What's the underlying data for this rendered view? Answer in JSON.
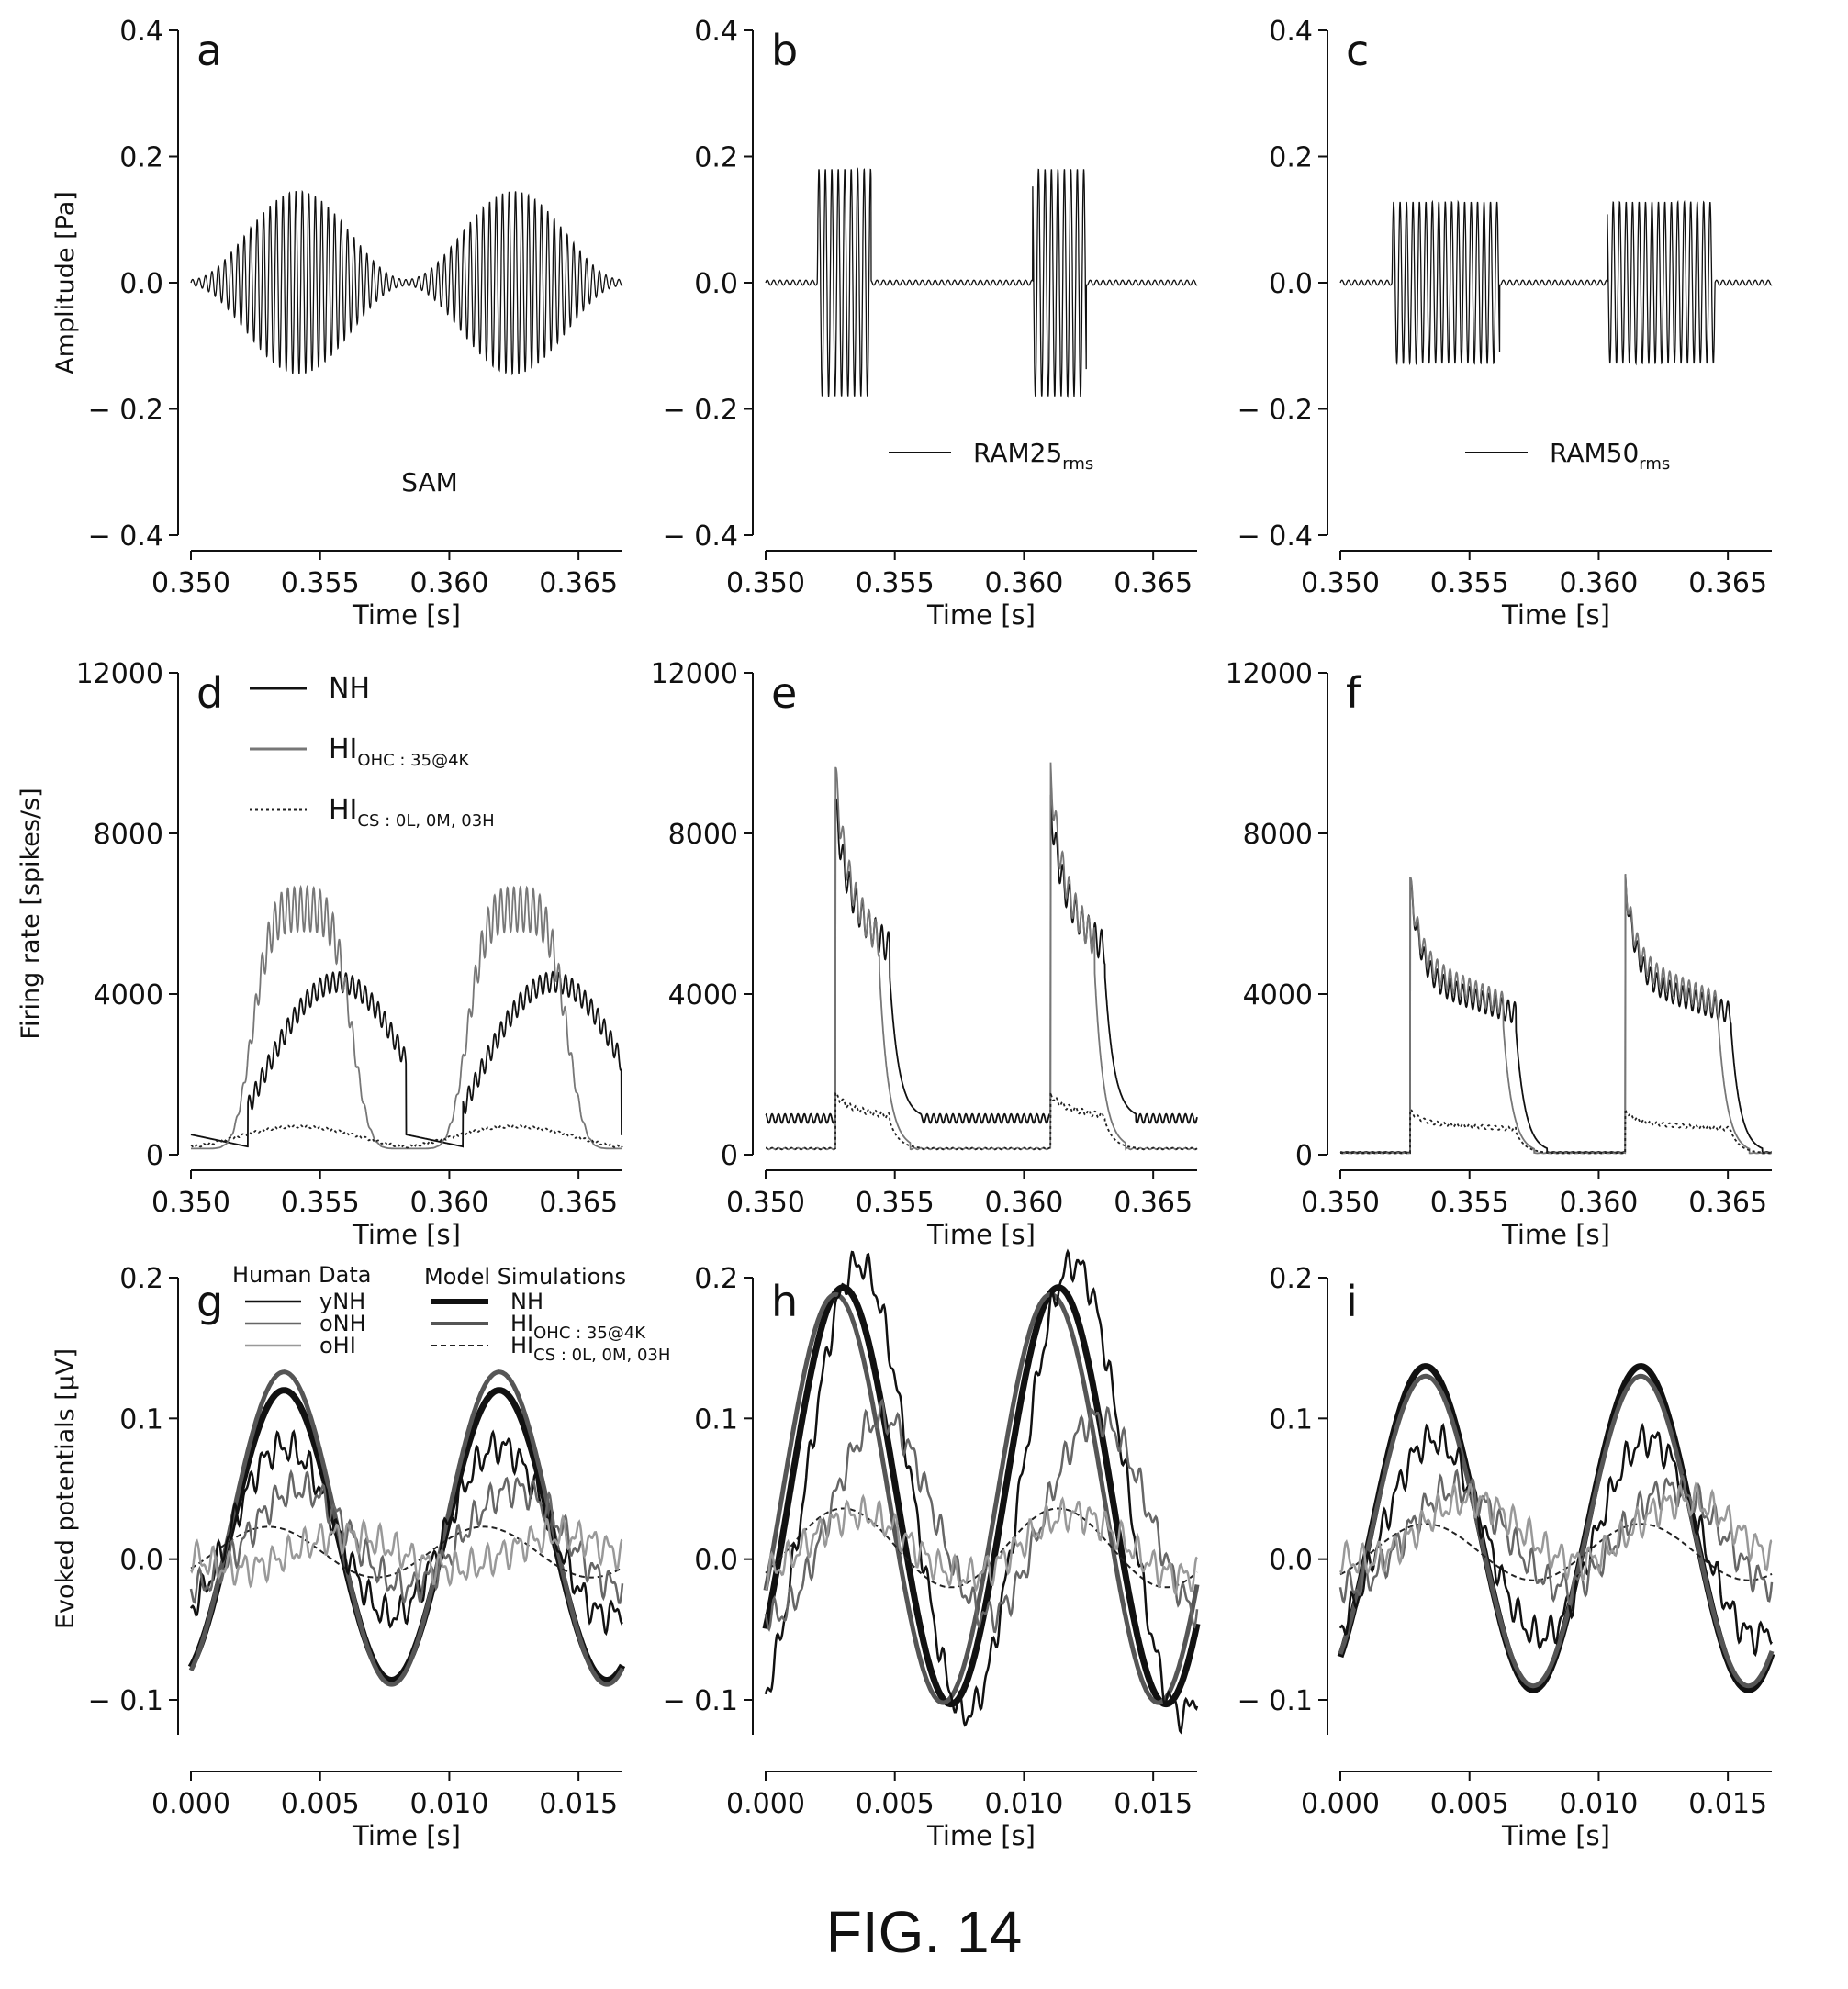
{
  "figure_caption": "FIG. 14",
  "chart_data": [
    {
      "id": "a",
      "panel_label": "a",
      "type": "line",
      "xlabel": "Time [s]",
      "ylabel": "Amplitude [Pa]",
      "xlim": [
        0.35,
        0.3667
      ],
      "ylim": [
        -0.4,
        0.4
      ],
      "xticks": [
        "0.350",
        "0.355",
        "0.360",
        "0.365"
      ],
      "yticks": [
        "0.4",
        "0.2",
        "0.0",
        "− 0.2",
        "− 0.4"
      ],
      "annotation": "SAM",
      "series": [
        {
          "name": "SAM",
          "kind": "sam",
          "carrier_hz": 4000,
          "mod_hz": 120,
          "peak": 0.145,
          "floor": 0.005
        }
      ]
    },
    {
      "id": "b",
      "panel_label": "b",
      "type": "line",
      "xlabel": "Time [s]",
      "ylabel": "",
      "xlim": [
        0.35,
        0.3667
      ],
      "ylim": [
        -0.4,
        0.4
      ],
      "xticks": [
        "0.350",
        "0.355",
        "0.360",
        "0.365"
      ],
      "yticks": [
        "0.4",
        "0.2",
        "0.0",
        "− 0.2",
        "− 0.4"
      ],
      "legend": [
        "RAM25",
        "rms"
      ],
      "series": [
        {
          "name": "RAM25rms",
          "kind": "ram",
          "carrier_hz": 4000,
          "period": 0.00833,
          "on_start": 0.352,
          "on_dur": 0.00208,
          "peak": 0.18,
          "floor": 0.004
        }
      ]
    },
    {
      "id": "c",
      "panel_label": "c",
      "type": "line",
      "xlabel": "Time [s]",
      "ylabel": "",
      "xlim": [
        0.35,
        0.3667
      ],
      "ylim": [
        -0.4,
        0.4
      ],
      "xticks": [
        "0.350",
        "0.355",
        "0.360",
        "0.365"
      ],
      "yticks": [
        "0.4",
        "0.2",
        "0.0",
        "− 0.2",
        "− 0.4"
      ],
      "legend": [
        "RAM50",
        "rms"
      ],
      "series": [
        {
          "name": "RAM50rms",
          "kind": "ram",
          "carrier_hz": 4000,
          "period": 0.00833,
          "on_start": 0.352,
          "on_dur": 0.00417,
          "peak": 0.128,
          "floor": 0.004
        }
      ]
    },
    {
      "id": "d",
      "panel_label": "d",
      "type": "line",
      "xlabel": "Time [s]",
      "ylabel": "Firing rate [spikes/s]",
      "xlim": [
        0.35,
        0.3667
      ],
      "ylim": [
        0,
        12000
      ],
      "xticks": [
        "0.350",
        "0.355",
        "0.360",
        "0.365"
      ],
      "yticks": [
        "12000",
        "8000",
        "4000",
        "0"
      ],
      "legend": [
        {
          "base": "NH",
          "sub": "",
          "style": "solid"
        },
        {
          "base": "HI",
          "sub": "OHC : 35@4K",
          "style": "gray"
        },
        {
          "base": "HI",
          "sub": "CS : 0L, 0M, 03H",
          "style": "dotted"
        }
      ],
      "series": [
        {
          "name": "NH",
          "kind": "fr_sam",
          "peak": 4300,
          "floor": 300,
          "ripple": 500
        },
        {
          "name": "HI OHC",
          "kind": "fr_sam_ohc",
          "peak": 6000,
          "floor": 150,
          "ripple": 1100
        },
        {
          "name": "HI CS",
          "kind": "fr_sam_cs",
          "peak": 700,
          "floor": 200,
          "ripple": 60
        }
      ]
    },
    {
      "id": "e",
      "panel_label": "e",
      "type": "line",
      "xlabel": "Time [s]",
      "ylabel": "",
      "xlim": [
        0.35,
        0.3667
      ],
      "ylim": [
        0,
        12000
      ],
      "xticks": [
        "0.350",
        "0.355",
        "0.360",
        "0.365"
      ],
      "yticks": [
        "12000",
        "8000",
        "4000",
        "0"
      ],
      "series": [
        {
          "name": "NH",
          "kind": "fr_ram",
          "onset": 0.3527,
          "dur": 0.0021,
          "peak": 8700,
          "sustain": 6400,
          "floor": 900
        },
        {
          "name": "HI OHC",
          "kind": "fr_ram",
          "onset": 0.3527,
          "dur": 0.0017,
          "peak": 9500,
          "sustain": 6600,
          "floor": 150
        },
        {
          "name": "HI CS",
          "kind": "fr_ram",
          "onset": 0.3527,
          "dur": 0.0021,
          "peak": 1500,
          "sustain": 1200,
          "floor": 150
        }
      ]
    },
    {
      "id": "f",
      "panel_label": "f",
      "type": "line",
      "xlabel": "Time [s]",
      "ylabel": "",
      "xlim": [
        0.35,
        0.3667
      ],
      "ylim": [
        0,
        12000
      ],
      "xticks": [
        "0.350",
        "0.355",
        "0.360",
        "0.365"
      ],
      "yticks": [
        "12000",
        "8000",
        "4000",
        "0"
      ],
      "series": [
        {
          "name": "NH",
          "kind": "fr_ram",
          "onset": 0.3527,
          "dur": 0.0041,
          "peak": 6800,
          "sustain": 4400,
          "floor": 60
        },
        {
          "name": "HI OHC",
          "kind": "fr_ram",
          "onset": 0.3527,
          "dur": 0.0036,
          "peak": 6800,
          "sustain": 4700,
          "floor": 40
        },
        {
          "name": "HI CS",
          "kind": "fr_ram",
          "onset": 0.3527,
          "dur": 0.0041,
          "peak": 1100,
          "sustain": 800,
          "floor": 40
        }
      ]
    },
    {
      "id": "g",
      "panel_label": "g",
      "type": "line",
      "xlabel": "Time [s]",
      "ylabel": "Evoked potentials [μV]",
      "xlim": [
        0,
        0.0167
      ],
      "ylim": [
        -0.1,
        0.2
      ],
      "xticks": [
        "0.000",
        "0.005",
        "0.010",
        "0.015"
      ],
      "yticks": [
        "0.2",
        "0.1",
        "0.0",
        "− 0.1"
      ],
      "legend_human_title": "Human Data",
      "legend_model_title": "Model Simulations",
      "legend_human": [
        "yNH",
        "oNH",
        "oHI"
      ],
      "legend_model": [
        {
          "base": "NH",
          "sub": ""
        },
        {
          "base": "HI",
          "sub": "OHC : 35@4K"
        },
        {
          "base": "HI",
          "sub": "CS : 0L, 0M, 03H"
        }
      ],
      "series": [
        {
          "name": "Model NH",
          "amp": 0.103,
          "off": 0.017,
          "peak_t": 0.0036,
          "w": 7
        },
        {
          "name": "Model HI OHC",
          "amp": 0.111,
          "off": 0.022,
          "peak_t": 0.0036,
          "w": 5
        },
        {
          "name": "Model HI CS",
          "amp": 0.018,
          "off": 0.005,
          "peak_t": 0.003,
          "w": 2
        },
        {
          "name": "yNH",
          "amp": 0.06,
          "off": 0.02,
          "peak_t": 0.0036,
          "w": 2.5
        },
        {
          "name": "oNH",
          "amp": 0.035,
          "off": 0.015,
          "peak_t": 0.0042,
          "w": 2.5
        },
        {
          "name": "oHI",
          "amp": 0.012,
          "off": 0.005,
          "peak_t": 0.006,
          "w": 2.5
        }
      ]
    },
    {
      "id": "h",
      "panel_label": "h",
      "type": "line",
      "xlabel": "Time [s]",
      "ylabel": "",
      "xlim": [
        0,
        0.0167
      ],
      "ylim": [
        -0.1,
        0.2
      ],
      "xticks": [
        "0.000",
        "0.005",
        "0.010",
        "0.015"
      ],
      "yticks": [
        "0.2",
        "0.1",
        "0.0",
        "− 0.1"
      ],
      "series": [
        {
          "name": "Model NH",
          "amp": 0.148,
          "off": 0.045,
          "peak_t": 0.003,
          "w": 7
        },
        {
          "name": "Model HI OHC",
          "amp": 0.145,
          "off": 0.043,
          "peak_t": 0.0027,
          "w": 5
        },
        {
          "name": "Model HI CS",
          "amp": 0.028,
          "off": 0.008,
          "peak_t": 0.003,
          "w": 2
        },
        {
          "name": "yNH",
          "amp": 0.16,
          "off": 0.05,
          "peak_t": 0.0036,
          "w": 2.5
        },
        {
          "name": "oNH",
          "amp": 0.07,
          "off": 0.03,
          "peak_t": 0.0045,
          "w": 2.5
        },
        {
          "name": "oHI",
          "amp": 0.022,
          "off": 0.01,
          "peak_t": 0.0036,
          "w": 2.5
        }
      ]
    },
    {
      "id": "i",
      "panel_label": "i",
      "type": "line",
      "xlabel": "Time [s]",
      "ylabel": "",
      "xlim": [
        0,
        0.0167
      ],
      "ylim": [
        -0.1,
        0.2
      ],
      "xticks": [
        "0.000",
        "0.005",
        "0.010",
        "0.015"
      ],
      "yticks": [
        "0.2",
        "0.1",
        "0.0",
        "− 0.1"
      ],
      "series": [
        {
          "name": "Model NH",
          "amp": 0.115,
          "off": 0.022,
          "peak_t": 0.0033,
          "w": 7
        },
        {
          "name": "Model HI OHC",
          "amp": 0.11,
          "off": 0.02,
          "peak_t": 0.0033,
          "w": 5
        },
        {
          "name": "Model HI CS",
          "amp": 0.02,
          "off": 0.005,
          "peak_t": 0.0033,
          "w": 2
        },
        {
          "name": "yNH",
          "amp": 0.07,
          "off": 0.015,
          "peak_t": 0.0036,
          "w": 2.5
        },
        {
          "name": "oNH",
          "amp": 0.035,
          "off": 0.015,
          "peak_t": 0.0045,
          "w": 2.5
        },
        {
          "name": "oHI",
          "amp": 0.022,
          "off": 0.02,
          "peak_t": 0.005,
          "w": 2.5
        }
      ]
    }
  ]
}
